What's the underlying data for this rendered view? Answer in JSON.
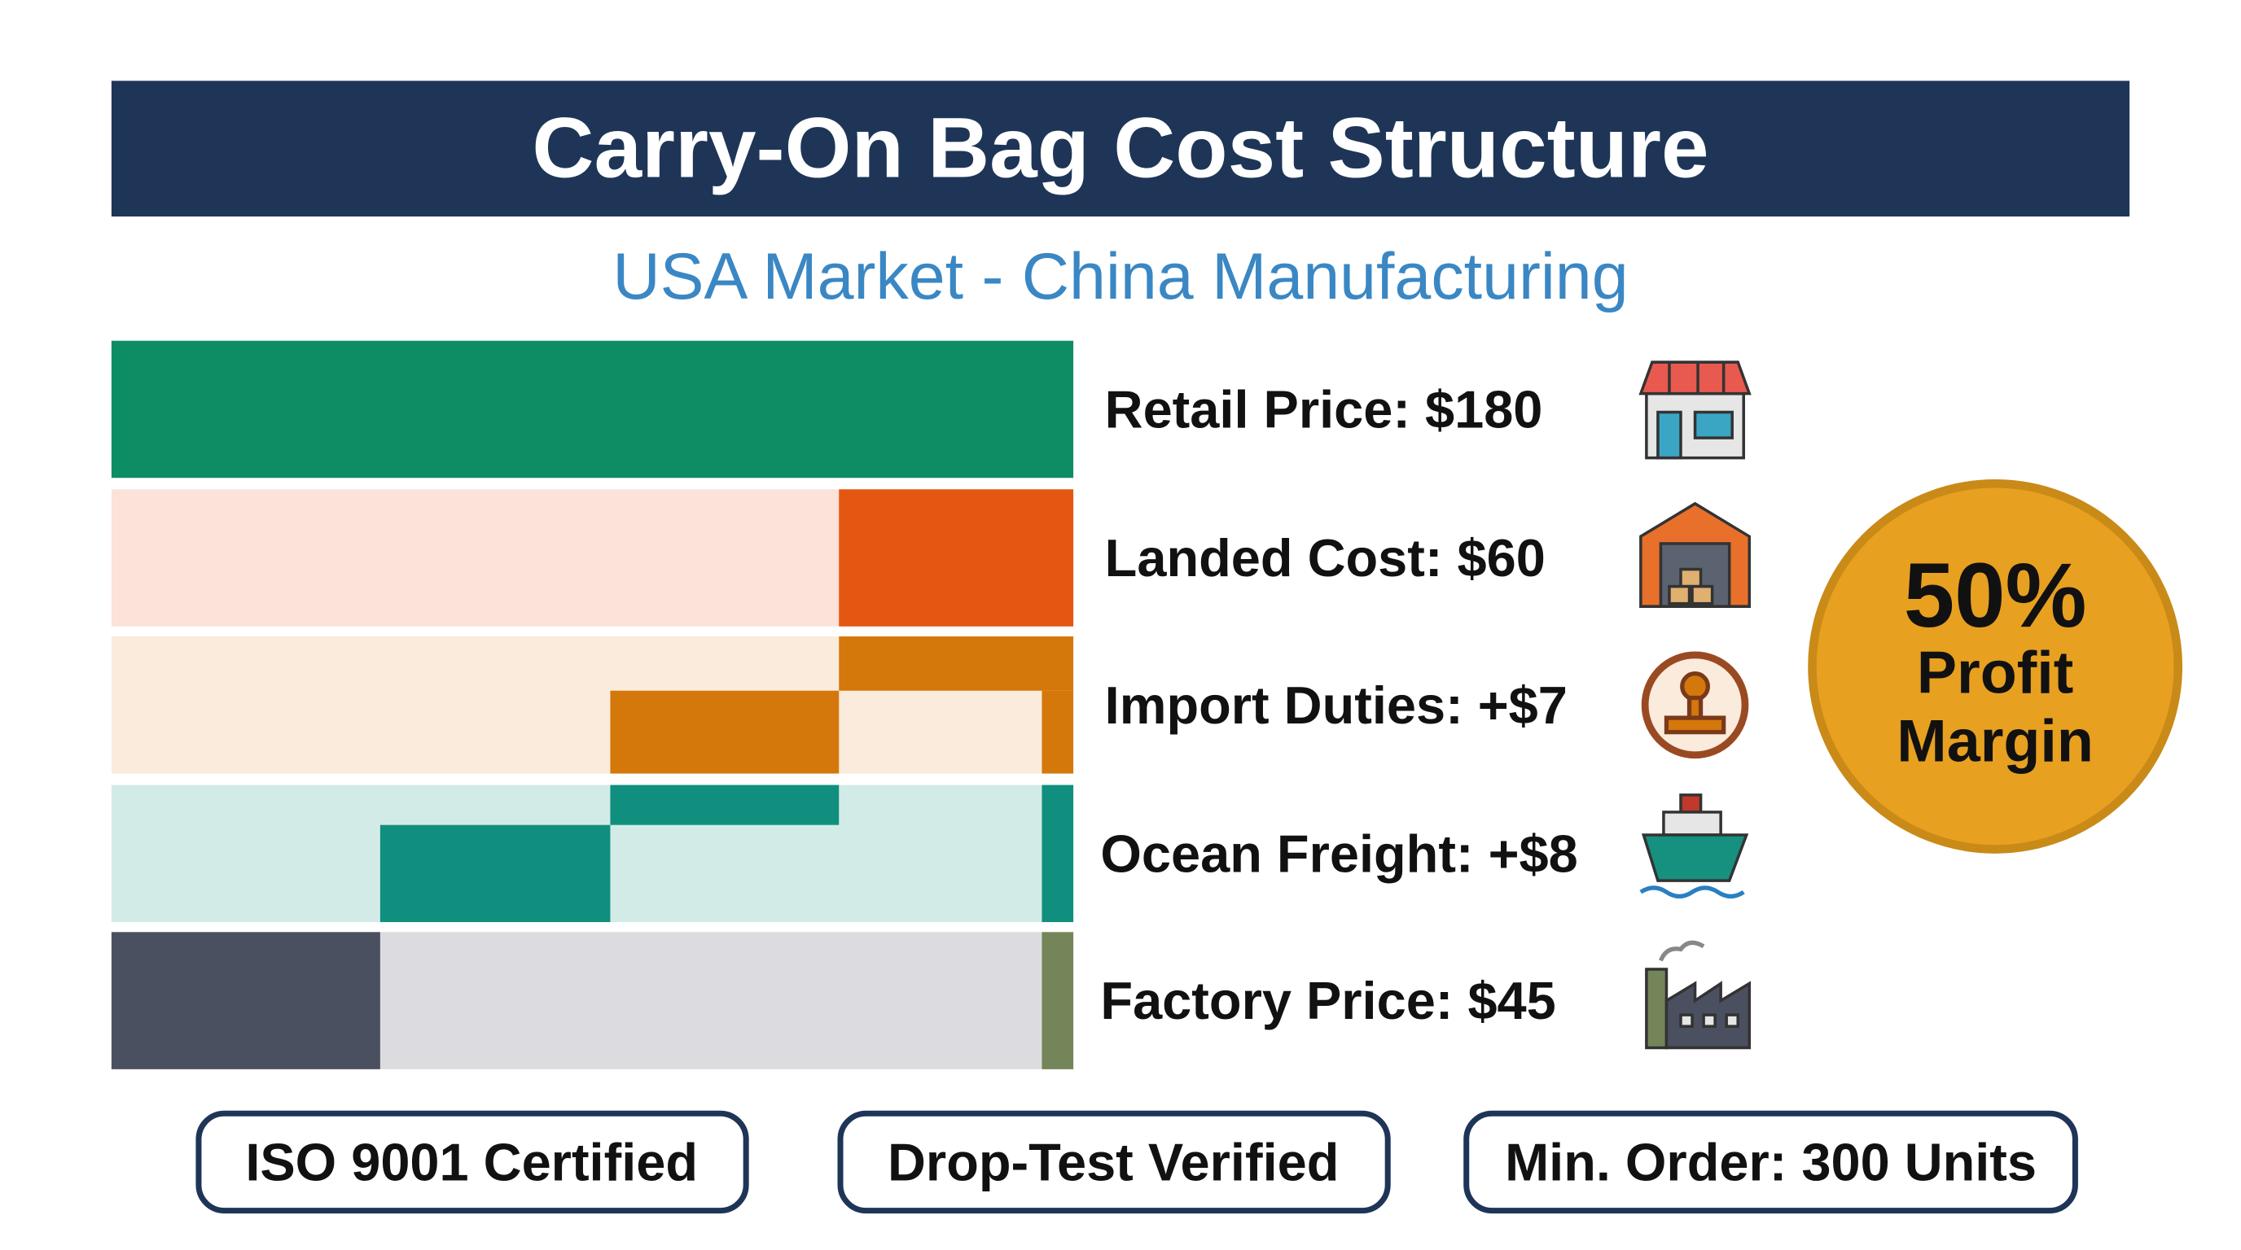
{
  "header": {
    "title": "Carry-On Bag Cost Structure",
    "subtitle": "USA Market - China Manufacturing"
  },
  "rows": [
    {
      "label": "Retail Price: $180"
    },
    {
      "label": "Landed Cost: $60"
    },
    {
      "label": "Import Duties: +$7"
    },
    {
      "label": "Ocean Freight: +$8"
    },
    {
      "label": "Factory Price: $45"
    }
  ],
  "badge": {
    "lines": [
      "50%",
      "Profit",
      "Margin"
    ]
  },
  "tags": [
    "ISO 9001 Certified",
    "Drop-Test Verified",
    "Min. Order: 300 Units"
  ]
}
